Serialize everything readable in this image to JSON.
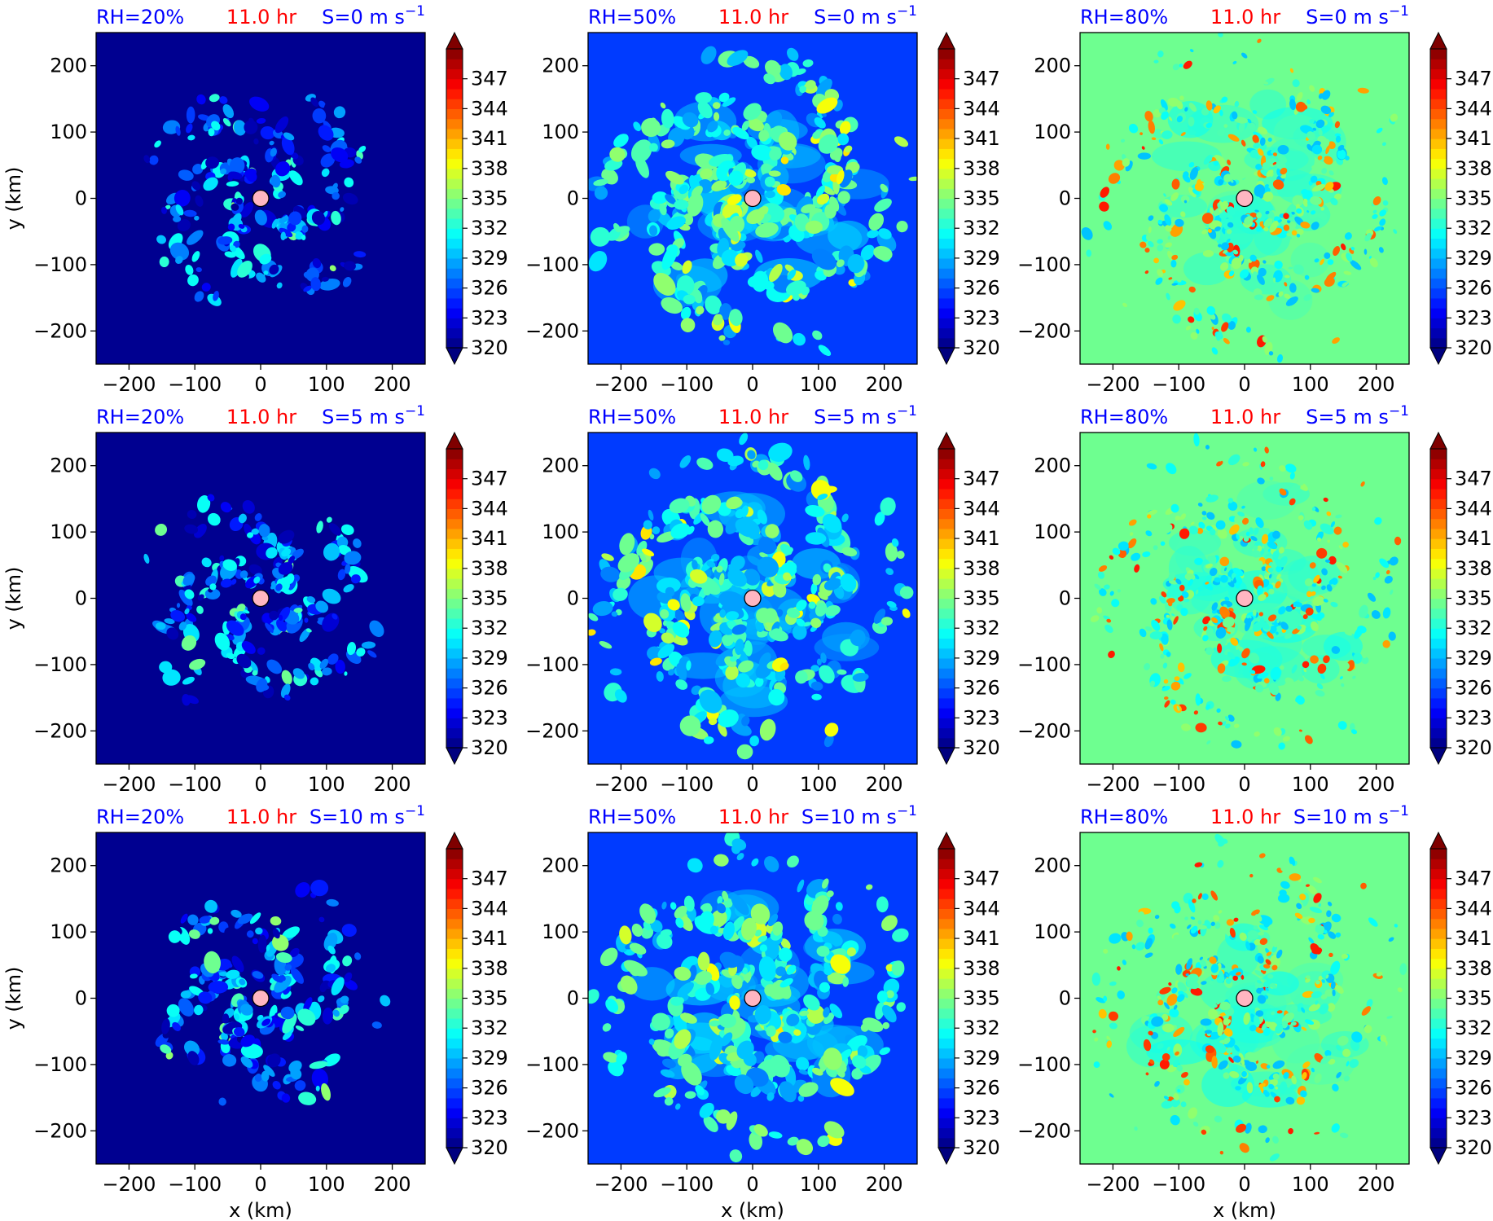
{
  "figure": {
    "rows": 3,
    "cols": 3,
    "title_time_color": "#ff0000",
    "title_side_color": "#0000ff",
    "center_marker_color": "#ffb6c1"
  },
  "chart_data": [
    {
      "type": "heatmap",
      "title_left": "RH=20%",
      "title_center": "11.0 hr",
      "title_right_prefix": "S=0 m s",
      "title_right_sup": "−1",
      "xlabel": "",
      "ylabel": "y (km)",
      "xlim": [
        -250,
        250
      ],
      "ylim": [
        -250,
        250
      ],
      "xticks": [
        -200,
        -100,
        0,
        100,
        200
      ],
      "yticks": [
        -200,
        -100,
        0,
        100,
        200
      ],
      "background_value": 320.5,
      "pattern": "sparse"
    },
    {
      "type": "heatmap",
      "title_left": "RH=50%",
      "title_center": "11.0 hr",
      "title_right_prefix": "S=0 m s",
      "title_right_sup": "−1",
      "xlabel": "",
      "ylabel": "",
      "xlim": [
        -250,
        250
      ],
      "ylim": [
        -250,
        250
      ],
      "xticks": [
        -200,
        -100,
        0,
        100,
        200
      ],
      "yticks": [
        -200,
        -100,
        0,
        100,
        200
      ],
      "background_value": 325.5,
      "pattern": "spiral"
    },
    {
      "type": "heatmap",
      "title_left": "RH=80%",
      "title_center": "11.0 hr",
      "title_right_prefix": "S=0 m s",
      "title_right_sup": "−1",
      "xlabel": "",
      "ylabel": "",
      "xlim": [
        -250,
        250
      ],
      "ylim": [
        -250,
        250
      ],
      "xticks": [
        -200,
        -100,
        0,
        100,
        200
      ],
      "yticks": [
        -200,
        -100,
        0,
        100,
        200
      ],
      "background_value": 334,
      "pattern": "warm"
    },
    {
      "type": "heatmap",
      "title_left": "RH=20%",
      "title_center": "11.0 hr",
      "title_right_prefix": "S=5 m s",
      "title_right_sup": "−1",
      "xlabel": "",
      "ylabel": "y (km)",
      "xlim": [
        -250,
        250
      ],
      "ylim": [
        -250,
        250
      ],
      "xticks": [
        -200,
        -100,
        0,
        100,
        200
      ],
      "yticks": [
        -200,
        -100,
        0,
        100,
        200
      ],
      "background_value": 320.5,
      "pattern": "sparse"
    },
    {
      "type": "heatmap",
      "title_left": "RH=50%",
      "title_center": "11.0 hr",
      "title_right_prefix": "S=5 m s",
      "title_right_sup": "−1",
      "xlabel": "",
      "ylabel": "",
      "xlim": [
        -250,
        250
      ],
      "ylim": [
        -250,
        250
      ],
      "xticks": [
        -200,
        -100,
        0,
        100,
        200
      ],
      "yticks": [
        -200,
        -100,
        0,
        100,
        200
      ],
      "background_value": 325.5,
      "pattern": "spiral"
    },
    {
      "type": "heatmap",
      "title_left": "RH=80%",
      "title_center": "11.0 hr",
      "title_right_prefix": "S=5 m s",
      "title_right_sup": "−1",
      "xlabel": "",
      "ylabel": "",
      "xlim": [
        -250,
        250
      ],
      "ylim": [
        -250,
        250
      ],
      "xticks": [
        -200,
        -100,
        0,
        100,
        200
      ],
      "yticks": [
        -200,
        -100,
        0,
        100,
        200
      ],
      "background_value": 334,
      "pattern": "warm"
    },
    {
      "type": "heatmap",
      "title_left": "RH=20%",
      "title_center": "11.0 hr",
      "title_right_prefix": "S=10 m s",
      "title_right_sup": "−1",
      "xlabel": "x (km)",
      "ylabel": "y (km)",
      "xlim": [
        -250,
        250
      ],
      "ylim": [
        -250,
        250
      ],
      "xticks": [
        -200,
        -100,
        0,
        100,
        200
      ],
      "yticks": [
        -200,
        -100,
        0,
        100,
        200
      ],
      "background_value": 320.5,
      "pattern": "sparse"
    },
    {
      "type": "heatmap",
      "title_left": "RH=50%",
      "title_center": "11.0 hr",
      "title_right_prefix": "S=10 m s",
      "title_right_sup": "−1",
      "xlabel": "x (km)",
      "ylabel": "",
      "xlim": [
        -250,
        250
      ],
      "ylim": [
        -250,
        250
      ],
      "xticks": [
        -200,
        -100,
        0,
        100,
        200
      ],
      "yticks": [
        -200,
        -100,
        0,
        100,
        200
      ],
      "background_value": 325.5,
      "pattern": "spiral"
    },
    {
      "type": "heatmap",
      "title_left": "RH=80%",
      "title_center": "11.0 hr",
      "title_right_prefix": "S=10 m s",
      "title_right_sup": "−1",
      "xlabel": "x (km)",
      "ylabel": "",
      "xlim": [
        -250,
        250
      ],
      "ylim": [
        -250,
        250
      ],
      "xticks": [
        -200,
        -100,
        0,
        100,
        200
      ],
      "yticks": [
        -200,
        -100,
        0,
        100,
        200
      ],
      "background_value": 334,
      "pattern": "warm"
    }
  ],
  "colorbar": {
    "min": 320,
    "max": 350,
    "step": 1,
    "extend": "both",
    "ticks": [
      320,
      323,
      326,
      329,
      332,
      335,
      338,
      341,
      344,
      347
    ],
    "colormap": [
      "#00007f",
      "#0000ff",
      "#007fff",
      "#00ffff",
      "#7fff7f",
      "#ffff00",
      "#ff7f00",
      "#ff0000",
      "#7f0000"
    ]
  }
}
